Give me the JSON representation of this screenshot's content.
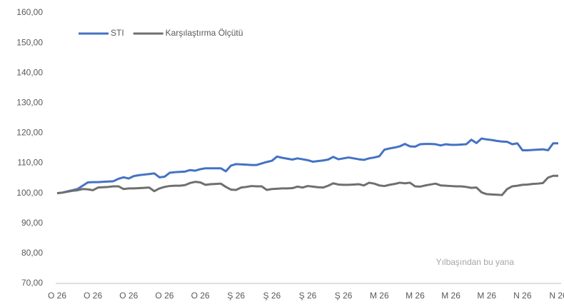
{
  "chart_data": {
    "type": "line",
    "annotation": "Yılbaşından bu yana",
    "categories": [
      "O 26",
      null,
      null,
      null,
      null,
      null,
      null,
      "O 26",
      null,
      null,
      null,
      null,
      null,
      null,
      "O 26",
      null,
      null,
      null,
      null,
      null,
      null,
      "O 26",
      null,
      null,
      null,
      null,
      null,
      null,
      "O 26",
      null,
      null,
      null,
      null,
      null,
      null,
      "Ş 26",
      null,
      null,
      null,
      null,
      null,
      null,
      "Ş 26",
      null,
      null,
      null,
      null,
      null,
      null,
      "Ş 26",
      null,
      null,
      null,
      null,
      null,
      null,
      "Ş 26",
      null,
      null,
      null,
      null,
      null,
      null,
      "M 26",
      null,
      null,
      null,
      null,
      null,
      null,
      "M 26",
      null,
      null,
      null,
      null,
      null,
      null,
      "M 26",
      null,
      null,
      null,
      null,
      null,
      null,
      "M 26",
      null,
      null,
      null,
      null,
      null,
      null,
      "N 26",
      null,
      null,
      null,
      null,
      null,
      null,
      "N 26"
    ],
    "series": [
      {
        "name": "STI",
        "color": "#4472c4",
        "values": [
          100,
          100.2,
          100.6,
          101,
          101.4,
          102.5,
          103.6,
          103.7,
          103.7,
          103.8,
          103.9,
          104,
          104.8,
          105.3,
          104.9,
          105.7,
          106,
          106.2,
          106.4,
          106.6,
          105.3,
          105.5,
          106.8,
          107,
          107.1,
          107.2,
          107.7,
          107.5,
          108,
          108.3,
          108.3,
          108.3,
          108.3,
          107.3,
          109.2,
          109.7,
          109.6,
          109.5,
          109.4,
          109.4,
          109.9,
          110.4,
          110.8,
          112.2,
          111.8,
          111.5,
          111.2,
          111.6,
          111.3,
          111,
          110.5,
          110.7,
          110.9,
          111.2,
          112.1,
          111.3,
          111.6,
          111.9,
          111.6,
          111.3,
          111.1,
          111.6,
          111.9,
          112.3,
          114.5,
          114.9,
          115.2,
          115.6,
          116.4,
          115.6,
          115.5,
          116.3,
          116.4,
          116.4,
          116.3,
          115.9,
          116.3,
          116.1,
          116.1,
          116.2,
          116.3,
          117.8,
          116.7,
          118.2,
          117.9,
          117.7,
          117.4,
          117.2,
          117.1,
          116.3,
          116.6,
          114.3,
          114.3,
          114.4,
          114.5,
          114.6,
          114.3,
          116.6,
          116.6
        ]
      },
      {
        "name": "Karşılaştırma Ölçütü",
        "color": "#6f6f6f",
        "values": [
          100,
          100.2,
          100.5,
          100.8,
          101,
          101.4,
          101.3,
          101,
          101.9,
          102,
          102.1,
          102.3,
          102.3,
          101.4,
          101.6,
          101.6,
          101.7,
          101.8,
          101.9,
          100.7,
          101.6,
          102.1,
          102.4,
          102.5,
          102.5,
          102.7,
          103.4,
          103.8,
          103.6,
          102.8,
          103,
          103.1,
          103.2,
          102.1,
          101.2,
          101.1,
          101.9,
          102.1,
          102.4,
          102.3,
          102.3,
          101.1,
          101.4,
          101.5,
          101.6,
          101.6,
          101.7,
          102.2,
          101.9,
          102.4,
          102.2,
          102,
          101.9,
          102.5,
          103.3,
          102.9,
          102.8,
          102.8,
          102.9,
          103,
          102.6,
          103.5,
          103.2,
          102.6,
          102.4,
          102.8,
          103.1,
          103.5,
          103.3,
          103.5,
          102.3,
          102.2,
          102.6,
          102.9,
          103.2,
          102.6,
          102.5,
          102.4,
          102.3,
          102.3,
          102.1,
          101.8,
          101.9,
          100.3,
          99.7,
          99.6,
          99.5,
          99.4,
          101.4,
          102.3,
          102.5,
          102.8,
          102.9,
          103.1,
          103.2,
          103.4,
          105.2,
          105.8,
          105.8
        ]
      }
    ],
    "ylim": [
      70,
      160
    ],
    "yticks": [
      {
        "value": 70,
        "label": "70,00"
      },
      {
        "value": 80,
        "label": "80,00"
      },
      {
        "value": 90,
        "label": "90,00"
      },
      {
        "value": 100,
        "label": "100,00"
      },
      {
        "value": 110,
        "label": "110,00"
      },
      {
        "value": 120,
        "label": "120,00"
      },
      {
        "value": 130,
        "label": "130,00"
      },
      {
        "value": 140,
        "label": "140,00"
      },
      {
        "value": 150,
        "label": "150,00"
      },
      {
        "value": 160,
        "label": "160,00"
      }
    ],
    "grid": false,
    "legend": "top-left"
  }
}
